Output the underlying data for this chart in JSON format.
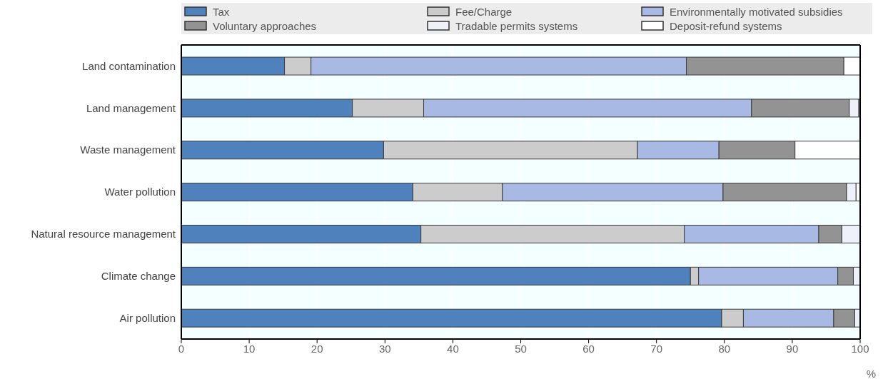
{
  "chart_data": {
    "type": "bar",
    "orientation": "horizontal",
    "stacked": true,
    "xlabel": "%",
    "categories": [
      "Land contamination",
      "Land management",
      "Waste management",
      "Water pollution",
      "Natural resource management",
      "Climate change",
      "Air pollution"
    ],
    "series": [
      {
        "name": "Tax",
        "color": "#4f81bd",
        "values": [
          15.2,
          25.2,
          29.8,
          34.1,
          35.3,
          75.0,
          79.6
        ]
      },
      {
        "name": "Fee/Charge",
        "color": "#cccccc",
        "values": [
          3.9,
          10.5,
          37.4,
          13.2,
          38.8,
          1.2,
          3.2
        ]
      },
      {
        "name": "Environmentally motivated subsidies",
        "color": "#a8b9e3",
        "values": [
          55.3,
          48.3,
          12.0,
          32.5,
          19.8,
          20.5,
          13.3
        ]
      },
      {
        "name": "Voluntary approaches",
        "color": "#939393",
        "values": [
          23.2,
          14.4,
          11.2,
          18.2,
          3.4,
          2.3,
          3.1
        ]
      },
      {
        "name": "Tradable permits systems",
        "color": "#eef0fa",
        "values": [
          null,
          1.4,
          null,
          1.4,
          2.7,
          1.0,
          0.8
        ]
      },
      {
        "name": "Deposit-refund systems",
        "color": "#ffffff",
        "values": [
          2.4,
          0.2,
          9.6,
          0.6,
          null,
          null,
          null
        ]
      }
    ],
    "xlim": [
      0,
      100
    ],
    "xticks": [
      0,
      10,
      20,
      30,
      40,
      50,
      60,
      70,
      80,
      90,
      100
    ],
    "grid": "x",
    "legend": "top"
  }
}
